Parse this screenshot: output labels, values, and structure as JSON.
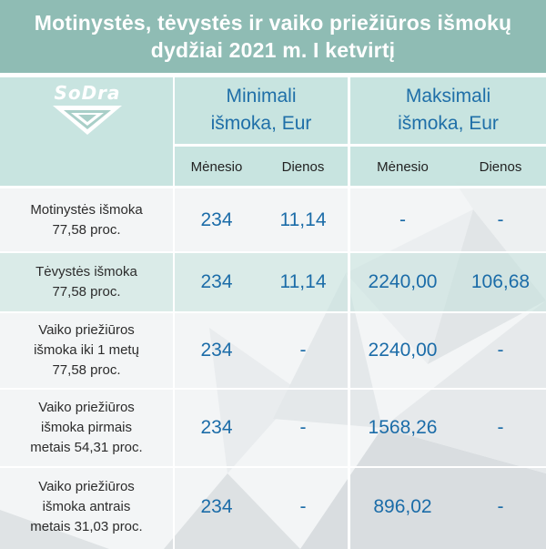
{
  "title": {
    "line1": "Motinystės, tėvystės ir vaiko priežiūros išmokų",
    "line2": "dydžiai 2021 m. I ketvirtį"
  },
  "logo": {
    "text": "SoDra"
  },
  "columns": {
    "min": {
      "line1": "Minimali",
      "line2": "išmoka, Eur"
    },
    "max": {
      "line1": "Maksimali",
      "line2": "išmoka, Eur"
    },
    "sub": [
      "Mėnesio",
      "Dienos",
      "Mėnesio",
      "Dienos"
    ]
  },
  "rows": [
    {
      "label": [
        "Motinystės išmoka",
        "77,58 proc."
      ],
      "values": [
        "234",
        "11,14",
        "-",
        "-"
      ]
    },
    {
      "label": [
        "Tėvystės išmoka",
        "77,58 proc."
      ],
      "values": [
        "234",
        "11,14",
        "2240,00",
        "106,68"
      ]
    },
    {
      "label": [
        "Vaiko priežiūros",
        "išmoka iki 1 metų",
        "77,58 proc."
      ],
      "values": [
        "234",
        "-",
        "2240,00",
        "-"
      ]
    },
    {
      "label": [
        "Vaiko priežiūros",
        "išmoka pirmais",
        "metais 54,31 proc."
      ],
      "values": [
        "234",
        "-",
        "1568,26",
        "-"
      ]
    },
    {
      "label": [
        "Vaiko priežiūros",
        "išmoka antrais",
        "metais 31,03 proc."
      ],
      "values": [
        "234",
        "-",
        "896,02",
        "-"
      ]
    }
  ],
  "colors": {
    "title_bg": "#8fbcb4",
    "header_bg": "#c4e2dd",
    "value_text": "#1b6ca8"
  }
}
